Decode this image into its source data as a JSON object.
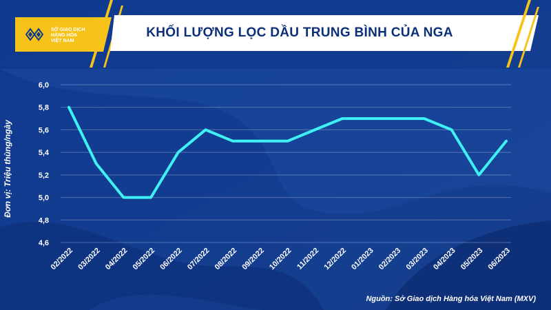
{
  "header": {
    "title": "KHỐI LƯỢNG LỌC DẦU TRUNG BÌNH CỦA NGA",
    "logo_text": [
      "SỞ GIAO DỊCH",
      "HÀNG HÓA",
      "VIỆT NAM"
    ]
  },
  "colors": {
    "background": "#123a8c",
    "line": "#3ff0f5",
    "accent": "#f7c21a"
  },
  "source": "Nguồn: Sở Giao dịch Hàng hóa Việt Nam (MXV)",
  "chart_data": {
    "type": "line",
    "title": "KHỐI LƯỢNG LỌC DẦU TRUNG BÌNH CỦA NGA",
    "xlabel": "",
    "ylabel": "Đơn vị: Triệu thùng/ngày",
    "categories": [
      "02/2022",
      "03/2022",
      "04/2022",
      "05/2022",
      "06/2022",
      "07/2022",
      "08/2022",
      "09/2022",
      "10/2022",
      "11/2022",
      "12/2022",
      "01/2023",
      "02/2023",
      "03/2023",
      "04/2023",
      "05/2023",
      "06/2023"
    ],
    "series": [
      {
        "values": [
          5.8,
          5.3,
          5.0,
          5.0,
          5.4,
          5.6,
          5.5,
          5.5,
          5.5,
          5.6,
          5.7,
          5.7,
          5.7,
          5.7,
          5.6,
          5.2,
          5.5
        ]
      }
    ],
    "yticks": [
      "4,6",
      "4,8",
      "5,0",
      "5,2",
      "5,4",
      "5,6",
      "5,8",
      "6,0"
    ],
    "ylim": [
      4.6,
      6.0
    ],
    "grid": true,
    "legend": "none"
  }
}
